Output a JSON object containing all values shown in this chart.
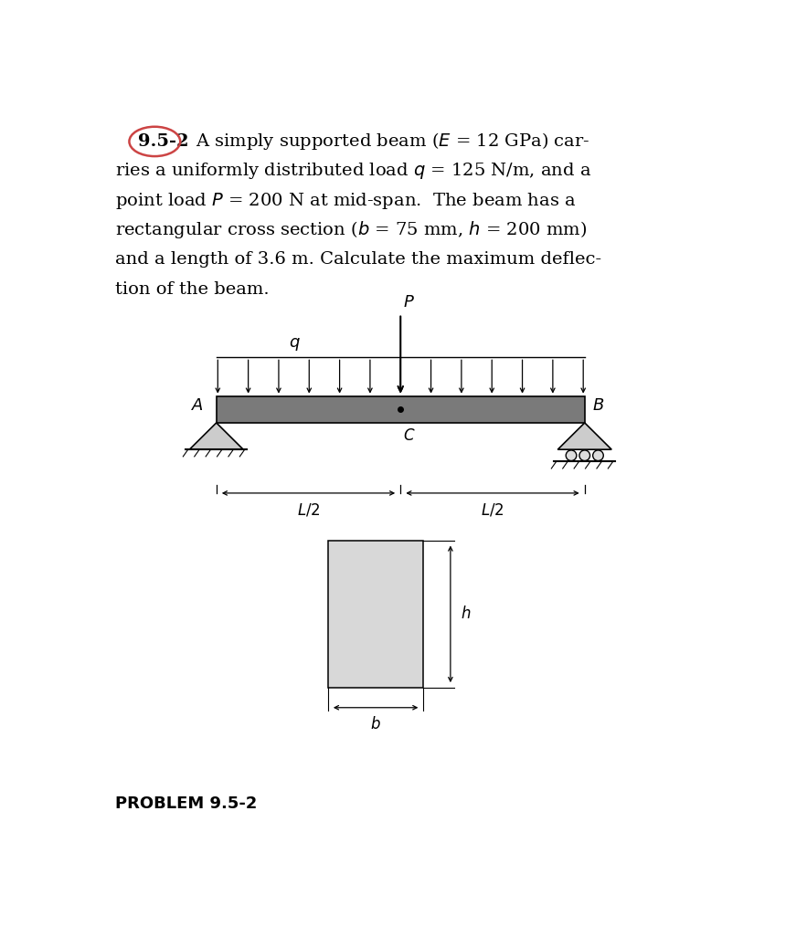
{
  "background_color": "#ffffff",
  "text_color": "#000000",
  "beam_facecolor": "#7a7a7a",
  "beam_edgecolor": "#000000",
  "cs_facecolor": "#d8d8d8",
  "cs_edgecolor": "#000000",
  "num_dist_arrows": 13,
  "problem_label": "PROBLEM 9.5-2"
}
